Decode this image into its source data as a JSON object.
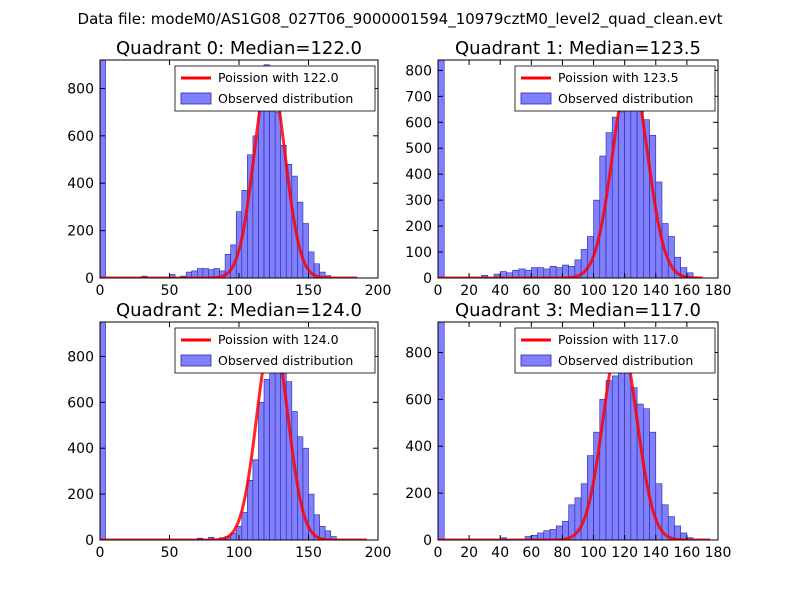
{
  "figure": {
    "suptitle": "Data file: modeM0/AS1G08_027T06_9000001594_10979cztM0_level2_quad_clean.evt",
    "colors": {
      "bar": "#8080ff",
      "bar_edge": "#2828a0",
      "fit": "#ff0000",
      "axis": "#000000"
    }
  },
  "chart_data": [
    {
      "type": "bar",
      "title": "Quadrant 0: Median=122.0",
      "xlim": [
        0,
        200
      ],
      "ylim": [
        0,
        920
      ],
      "xticks": [
        0,
        50,
        100,
        150,
        200
      ],
      "yticks": [
        0,
        200,
        400,
        600,
        800
      ],
      "legend": {
        "placement": "top-right",
        "fit_label": "Poission with 122.0",
        "obs_label": "Observed distribution"
      },
      "bin_width": 4,
      "bars": [
        [
          0,
          920
        ],
        [
          30,
          8
        ],
        [
          50,
          15
        ],
        [
          58,
          8
        ],
        [
          62,
          25
        ],
        [
          66,
          30
        ],
        [
          70,
          40
        ],
        [
          74,
          40
        ],
        [
          78,
          35
        ],
        [
          82,
          40
        ],
        [
          86,
          30
        ],
        [
          90,
          100
        ],
        [
          94,
          140
        ],
        [
          98,
          280
        ],
        [
          102,
          370
        ],
        [
          106,
          520
        ],
        [
          110,
          600
        ],
        [
          114,
          780
        ],
        [
          118,
          900
        ],
        [
          122,
          840
        ],
        [
          126,
          700
        ],
        [
          130,
          560
        ],
        [
          134,
          480
        ],
        [
          138,
          430
        ],
        [
          142,
          320
        ],
        [
          146,
          230
        ],
        [
          150,
          110
        ],
        [
          154,
          60
        ],
        [
          158,
          25
        ],
        [
          162,
          10
        ]
      ],
      "fit": {
        "mean": 122.0,
        "peak": 870,
        "sigma": 11.0,
        "range": [
          0,
          185
        ]
      }
    },
    {
      "type": "bar",
      "title": "Quadrant 1: Median=123.5",
      "xlim": [
        0,
        180
      ],
      "ylim": [
        0,
        840
      ],
      "xticks": [
        0,
        20,
        40,
        60,
        80,
        100,
        120,
        140,
        160,
        180
      ],
      "yticks": [
        0,
        100,
        200,
        300,
        400,
        500,
        600,
        700,
        800
      ],
      "legend": {
        "placement": "top-right",
        "fit_label": "Poission with 123.5",
        "obs_label": "Observed distribution"
      },
      "bin_width": 4,
      "bars": [
        [
          0,
          840
        ],
        [
          28,
          10
        ],
        [
          36,
          15
        ],
        [
          40,
          25
        ],
        [
          44,
          20
        ],
        [
          48,
          30
        ],
        [
          52,
          35
        ],
        [
          56,
          30
        ],
        [
          60,
          40
        ],
        [
          64,
          40
        ],
        [
          68,
          35
        ],
        [
          72,
          45
        ],
        [
          76,
          40
        ],
        [
          80,
          50
        ],
        [
          84,
          45
        ],
        [
          88,
          70
        ],
        [
          92,
          110
        ],
        [
          96,
          160
        ],
        [
          100,
          300
        ],
        [
          104,
          470
        ],
        [
          108,
          560
        ],
        [
          112,
          620
        ],
        [
          116,
          640
        ],
        [
          120,
          730
        ],
        [
          124,
          780
        ],
        [
          128,
          690
        ],
        [
          132,
          610
        ],
        [
          136,
          550
        ],
        [
          140,
          370
        ],
        [
          144,
          210
        ],
        [
          148,
          160
        ],
        [
          152,
          80
        ],
        [
          156,
          40
        ],
        [
          160,
          20
        ]
      ],
      "fit": {
        "mean": 123.5,
        "peak": 800,
        "sigma": 11.1,
        "range": [
          0,
          170
        ]
      }
    },
    {
      "type": "bar",
      "title": "Quadrant 2: Median=124.0",
      "xlim": [
        0,
        200
      ],
      "ylim": [
        0,
        950
      ],
      "xticks": [
        0,
        50,
        100,
        150,
        200
      ],
      "yticks": [
        0,
        200,
        400,
        600,
        800
      ],
      "legend": {
        "placement": "top-right",
        "fit_label": "Poission with 124.0",
        "obs_label": "Observed distribution"
      },
      "bin_width": 4,
      "bars": [
        [
          0,
          950
        ],
        [
          70,
          8
        ],
        [
          78,
          12
        ],
        [
          86,
          10
        ],
        [
          90,
          15
        ],
        [
          94,
          30
        ],
        [
          98,
          60
        ],
        [
          102,
          120
        ],
        [
          106,
          260
        ],
        [
          110,
          350
        ],
        [
          114,
          600
        ],
        [
          118,
          700
        ],
        [
          122,
          800
        ],
        [
          126,
          900
        ],
        [
          130,
          790
        ],
        [
          134,
          690
        ],
        [
          138,
          560
        ],
        [
          142,
          450
        ],
        [
          146,
          400
        ],
        [
          150,
          200
        ],
        [
          154,
          110
        ],
        [
          158,
          60
        ],
        [
          162,
          40
        ],
        [
          166,
          15
        ]
      ],
      "fit": {
        "mean": 124.0,
        "peak": 900,
        "sigma": 11.1,
        "range": [
          0,
          192
        ]
      }
    },
    {
      "type": "bar",
      "title": "Quadrant 3: Median=117.0",
      "xlim": [
        0,
        180
      ],
      "ylim": [
        0,
        930
      ],
      "xticks": [
        0,
        20,
        40,
        60,
        80,
        100,
        120,
        140,
        160,
        180
      ],
      "yticks": [
        0,
        200,
        400,
        600,
        800
      ],
      "legend": {
        "placement": "top-right",
        "fit_label": "Poission with 117.0",
        "obs_label": "Observed distribution"
      },
      "bin_width": 4,
      "bars": [
        [
          0,
          930
        ],
        [
          40,
          10
        ],
        [
          56,
          15
        ],
        [
          60,
          20
        ],
        [
          64,
          30
        ],
        [
          68,
          40
        ],
        [
          72,
          45
        ],
        [
          76,
          60
        ],
        [
          80,
          80
        ],
        [
          84,
          150
        ],
        [
          88,
          180
        ],
        [
          92,
          240
        ],
        [
          96,
          360
        ],
        [
          100,
          460
        ],
        [
          104,
          600
        ],
        [
          108,
          680
        ],
        [
          112,
          700
        ],
        [
          116,
          850
        ],
        [
          120,
          740
        ],
        [
          124,
          650
        ],
        [
          128,
          580
        ],
        [
          132,
          560
        ],
        [
          136,
          460
        ],
        [
          140,
          240
        ],
        [
          144,
          150
        ],
        [
          148,
          100
        ],
        [
          152,
          60
        ],
        [
          156,
          30
        ],
        [
          160,
          10
        ]
      ],
      "fit": {
        "mean": 117.0,
        "peak": 860,
        "sigma": 10.8,
        "range": [
          0,
          175
        ]
      }
    }
  ]
}
